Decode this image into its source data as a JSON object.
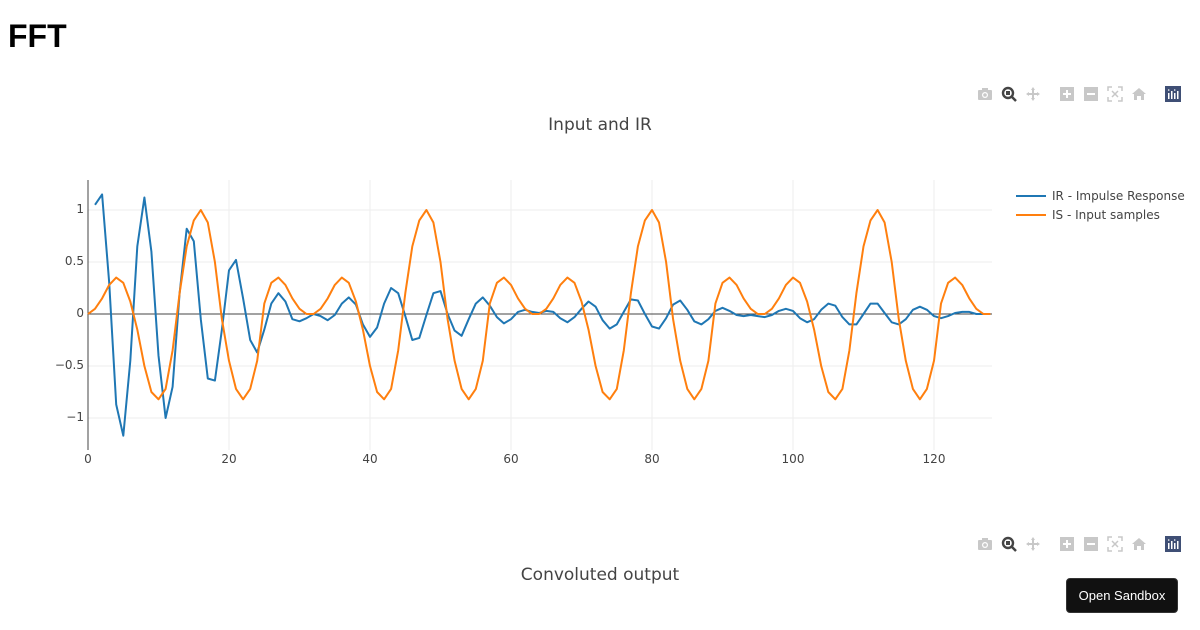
{
  "page": {
    "title": "FFT"
  },
  "modebar": {
    "buttons": [
      {
        "name": "camera-icon",
        "label": "Download plot as a png"
      },
      {
        "name": "zoom-icon",
        "label": "Zoom"
      },
      {
        "name": "pan-icon",
        "label": "Pan"
      },
      {
        "name": "zoom-in-icon",
        "label": "Zoom in"
      },
      {
        "name": "zoom-out-icon",
        "label": "Zoom out"
      },
      {
        "name": "autoscale-icon",
        "label": "Autoscale"
      },
      {
        "name": "home-icon",
        "label": "Reset axes"
      },
      {
        "name": "plotly-logo-icon",
        "label": "Produced with Plotly"
      }
    ]
  },
  "sandbox": {
    "label": "Open Sandbox"
  },
  "colors": {
    "ir": "#1f77b4",
    "is": "#ff7f0e",
    "grid": "#eeeeee",
    "zero": "#444444",
    "text": "#444444"
  },
  "chart_data": [
    {
      "type": "line",
      "title": "Input and IR",
      "xlabel": "",
      "ylabel": "",
      "xlim": [
        0,
        128
      ],
      "ylim": [
        -1.3,
        1.25
      ],
      "grid": true,
      "legend_position": "right",
      "x_ticks": [
        0,
        20,
        40,
        60,
        80,
        100,
        120
      ],
      "y_ticks": [
        1,
        0.5,
        0,
        -0.5,
        -1
      ],
      "y_tick_labels": [
        "1",
        "0.5",
        "0",
        "−0.5",
        "−1"
      ],
      "series": [
        {
          "name": "IR - Impulse Response",
          "color": "#1f77b4",
          "x_start": 1,
          "values": [
            1.05,
            1.15,
            0.3,
            -0.87,
            -1.17,
            -0.45,
            0.65,
            1.12,
            0.6,
            -0.4,
            -1.0,
            -0.7,
            0.2,
            0.82,
            0.7,
            -0.05,
            -0.62,
            -0.64,
            -0.15,
            0.42,
            0.52,
            0.15,
            -0.25,
            -0.37,
            -0.15,
            0.1,
            0.2,
            0.12,
            -0.05,
            -0.07,
            -0.04,
            0.0,
            -0.02,
            -0.06,
            -0.01,
            0.1,
            0.16,
            0.09,
            -0.1,
            -0.22,
            -0.13,
            0.1,
            0.25,
            0.2,
            -0.02,
            -0.25,
            -0.23,
            -0.01,
            0.2,
            0.22,
            0.0,
            -0.16,
            -0.21,
            -0.05,
            0.1,
            0.16,
            0.08,
            -0.03,
            -0.09,
            -0.05,
            0.02,
            0.04,
            0.02,
            0.01,
            0.03,
            0.02,
            -0.04,
            -0.08,
            -0.03,
            0.05,
            0.12,
            0.07,
            -0.06,
            -0.14,
            -0.1,
            0.02,
            0.14,
            0.13,
            0.0,
            -0.12,
            -0.14,
            -0.04,
            0.09,
            0.13,
            0.04,
            -0.07,
            -0.1,
            -0.05,
            0.03,
            0.06,
            0.03,
            -0.01,
            -0.02,
            -0.01,
            -0.02,
            -0.03,
            -0.01,
            0.03,
            0.05,
            0.03,
            -0.04,
            -0.08,
            -0.05,
            0.04,
            0.1,
            0.08,
            -0.03,
            -0.1,
            -0.1,
            0.0,
            0.1,
            0.1,
            0.01,
            -0.08,
            -0.1,
            -0.05,
            0.04,
            0.07,
            0.04,
            -0.02,
            -0.04,
            -0.02,
            0.01,
            0.02,
            0.02,
            0.0,
            0.0
          ]
        },
        {
          "name": "IS - Input samples",
          "color": "#ff7f0e",
          "x_start": 0,
          "period_values": [
            0,
            0.05,
            0.15,
            0.28,
            0.35,
            0.3,
            0.12,
            -0.15,
            -0.5,
            -0.75,
            -0.82,
            -0.72,
            -0.35,
            0.2,
            0.65,
            0.9,
            1.0,
            0.88,
            0.5,
            -0.05,
            -0.45,
            -0.72,
            -0.82,
            -0.72,
            -0.45,
            0.1,
            0.3,
            0.35,
            0.28,
            0.15,
            0.05,
            0.0
          ],
          "period": 32,
          "length": 129
        }
      ]
    },
    {
      "type": "line",
      "title": "Convoluted output",
      "series": []
    }
  ]
}
